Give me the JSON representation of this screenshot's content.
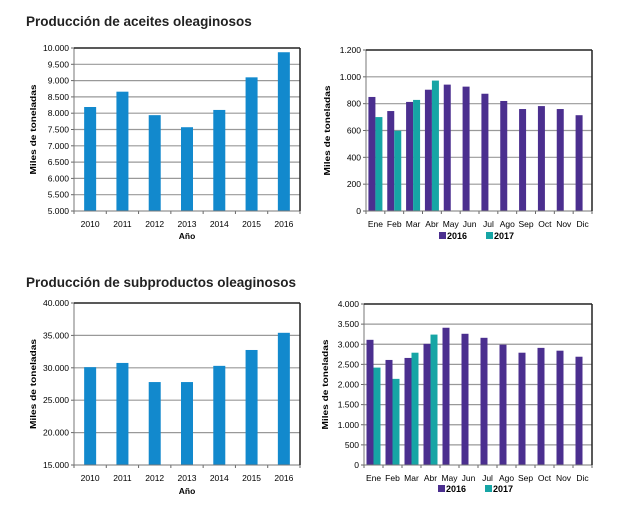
{
  "sections": {
    "top_title": "Producción de aceites oleaginosos",
    "bottom_title": "Producción de subproductos oleaginosos"
  },
  "colors": {
    "annual_bar": "#1289cd",
    "series_2016": "#4b2f8f",
    "series_2017": "#16a5a5",
    "gridline": "#999999",
    "frame": "#222222"
  },
  "chart_data": [
    {
      "id": "aceites-anual",
      "type": "bar",
      "title": "Producción de aceites oleaginosos",
      "xlabel": "Año",
      "ylabel": "Miles de toneladas",
      "categories": [
        "2010",
        "2011",
        "2012",
        "2013",
        "2014",
        "2015",
        "2016"
      ],
      "values": [
        8190,
        8660,
        7940,
        7570,
        8100,
        9100,
        9870
      ],
      "ylim": [
        5000,
        10000
      ],
      "yticks": [
        5000,
        5500,
        6000,
        6500,
        7000,
        7500,
        8000,
        8500,
        9000,
        9500,
        10000
      ],
      "ytick_labels": [
        "5.000",
        "5.500",
        "6.000",
        "6.500",
        "7.000",
        "7.500",
        "8.000",
        "8.500",
        "9.000",
        "9.500",
        "10.000"
      ],
      "grid": true,
      "legend": null
    },
    {
      "id": "aceites-mensual",
      "type": "bar",
      "title": "",
      "xlabel": "",
      "ylabel": "Miles de toneladas",
      "categories": [
        "Ene",
        "Feb",
        "Mar",
        "Abr",
        "May",
        "Jun",
        "Jul",
        "Ago",
        "Sep",
        "Oct",
        "Nov",
        "Dic"
      ],
      "series": [
        {
          "name": "2016",
          "values": [
            850,
            745,
            813,
            904,
            942,
            927,
            874,
            820,
            760,
            782,
            760,
            714
          ]
        },
        {
          "name": "2017",
          "values": [
            700,
            598,
            828,
            972,
            null,
            null,
            null,
            null,
            null,
            null,
            null,
            null
          ]
        }
      ],
      "ylim": [
        0,
        1200
      ],
      "yticks": [
        0,
        200,
        400,
        600,
        800,
        1000,
        1200
      ],
      "ytick_labels": [
        "0",
        "200",
        "400",
        "600",
        "800",
        "1.000",
        "1.200"
      ],
      "grid": true,
      "legend": "bottom-center"
    },
    {
      "id": "subproductos-anual",
      "type": "bar",
      "title": "Producción de subproductos oleaginosos",
      "xlabel": "Año",
      "ylabel": "Miles de toneladas",
      "categories": [
        "2010",
        "2011",
        "2012",
        "2013",
        "2014",
        "2015",
        "2016"
      ],
      "values": [
        30100,
        30750,
        27800,
        27800,
        30300,
        32750,
        35400
      ],
      "ylim": [
        15000,
        40000
      ],
      "yticks": [
        15000,
        20000,
        25000,
        30000,
        35000,
        40000
      ],
      "ytick_labels": [
        "15.000",
        "20.000",
        "25.000",
        "30.000",
        "35.000",
        "40.000"
      ],
      "grid": true,
      "legend": null
    },
    {
      "id": "subproductos-mensual",
      "type": "bar",
      "title": "",
      "xlabel": "",
      "ylabel": "Miles de toneladas",
      "categories": [
        "Ene",
        "Feb",
        "Mar",
        "Abr",
        "May",
        "Jun",
        "Jul",
        "Ago",
        "Sep",
        "Oct",
        "Nov",
        "Dic"
      ],
      "series": [
        {
          "name": "2016",
          "values": [
            3110,
            2610,
            2660,
            3010,
            3410,
            3260,
            3160,
            2990,
            2790,
            2910,
            2840,
            2690
          ]
        },
        {
          "name": "2017",
          "values": [
            2420,
            2140,
            2790,
            3240,
            null,
            null,
            null,
            null,
            null,
            null,
            null,
            null
          ]
        }
      ],
      "ylim": [
        0,
        4000
      ],
      "yticks": [
        0,
        500,
        1000,
        1500,
        2000,
        2500,
        3000,
        3500,
        4000
      ],
      "ytick_labels": [
        "0",
        "500",
        "1.000",
        "1.500",
        "2.000",
        "2.500",
        "3.000",
        "3.500",
        "4.000"
      ],
      "grid": true,
      "legend": "bottom-center"
    }
  ]
}
